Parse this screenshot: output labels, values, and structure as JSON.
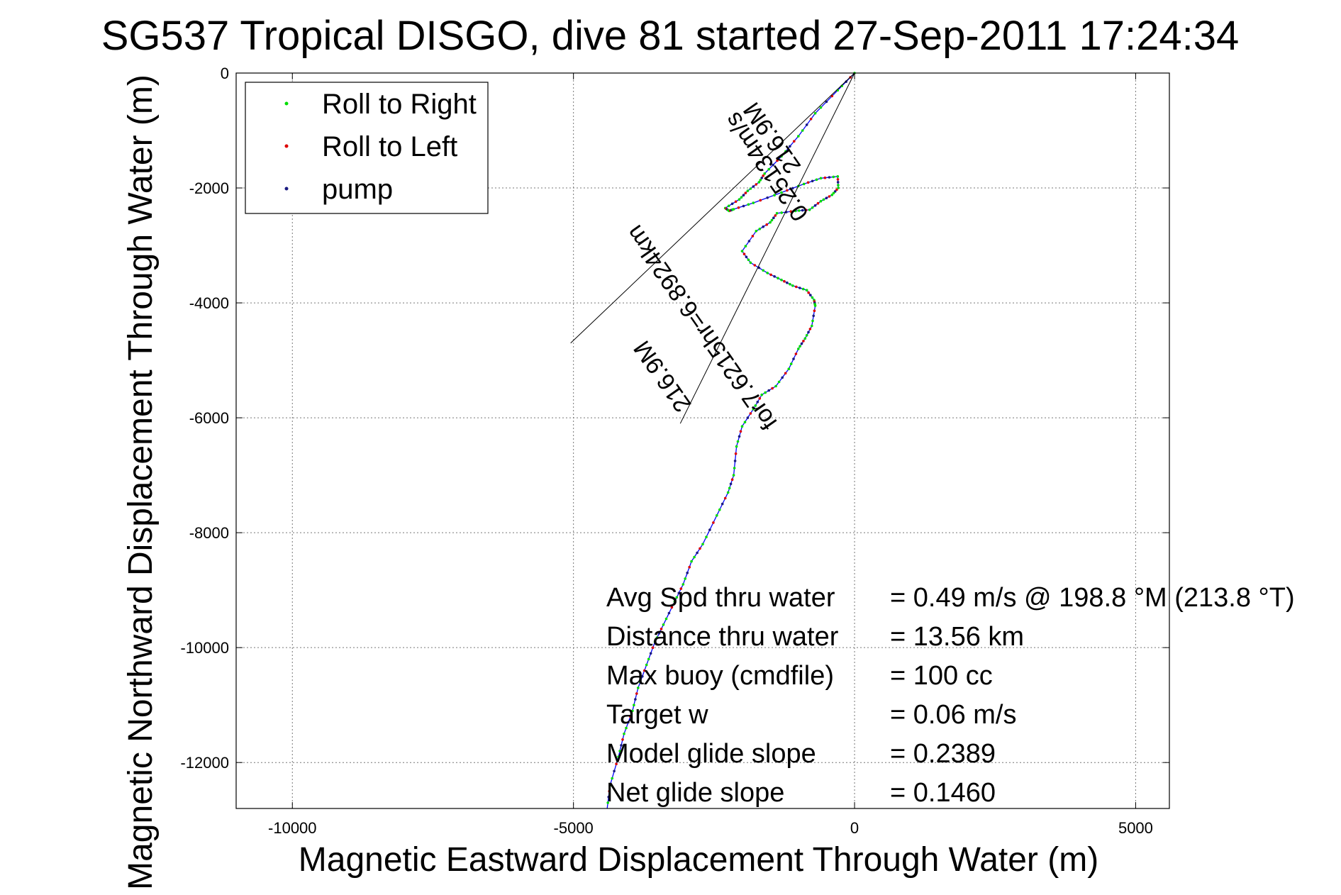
{
  "chart_data": {
    "type": "line",
    "title": "SG537 Tropical DISGO, dive 81 started 27-Sep-2011 17:24:34",
    "xlabel": "Magnetic Eastward Displacement Through Water (m)",
    "ylabel": "Magnetic Northward Displacement Through Water (m)",
    "xlim": [
      -11000,
      5600
    ],
    "ylim": [
      -12800,
      0
    ],
    "xticks": [
      -10000,
      -5000,
      0,
      5000
    ],
    "xtick_labels": [
      "-10000",
      "-5000",
      "0",
      "5000"
    ],
    "yticks": [
      0,
      -2000,
      -4000,
      -6000,
      -8000,
      -10000,
      -12000
    ],
    "ytick_labels": [
      "0",
      "-2000",
      "-4000",
      "-6000",
      "-8000",
      "-10000",
      "-12000"
    ],
    "grid": true,
    "legend_position": "top-left",
    "legend": [
      {
        "label": "Roll to Right",
        "color": "#00dd00"
      },
      {
        "label": "Roll to Left",
        "color": "#dd0000"
      },
      {
        "label": "pump",
        "color": "#1a1a80"
      }
    ],
    "track_color": "#0000ff",
    "track": {
      "x": [
        0,
        -300,
        -700,
        -1000,
        -1300,
        -1600,
        -1700,
        -1900,
        -2050,
        -2300,
        -2230,
        -2150,
        -1800,
        -1300,
        -900,
        -600,
        -300,
        -290,
        -400,
        -600,
        -800,
        -1050,
        -1380,
        -1500,
        -1750,
        -2000,
        -1850,
        -1550,
        -1300,
        -1100,
        -850,
        -720,
        -700,
        -760,
        -880,
        -1000,
        -1170,
        -1400,
        -1650,
        -1800,
        -2000,
        -2100,
        -2150,
        -2250,
        -2450,
        -2700,
        -2900,
        -3050,
        -3200,
        -3400,
        -3550,
        -3700,
        -3850,
        -3950,
        -4100,
        -4200,
        -4350,
        -4400
      ],
      "y": [
        0,
        -300,
        -700,
        -1100,
        -1450,
        -1750,
        -1900,
        -2050,
        -2200,
        -2350,
        -2400,
        -2370,
        -2260,
        -2080,
        -1930,
        -1830,
        -1800,
        -2000,
        -2120,
        -2230,
        -2380,
        -2400,
        -2440,
        -2600,
        -2750,
        -3100,
        -3300,
        -3480,
        -3600,
        -3700,
        -3780,
        -3950,
        -4050,
        -4400,
        -4620,
        -4800,
        -5150,
        -5450,
        -5600,
        -5850,
        -6150,
        -6500,
        -7000,
        -7300,
        -7700,
        -8200,
        -8500,
        -8900,
        -9200,
        -9600,
        -9900,
        -10300,
        -10700,
        -11100,
        -11500,
        -11900,
        -12400,
        -12800
      ]
    },
    "heading_lines": [
      {
        "from": [
          0,
          0
        ],
        "to": [
          -5050,
          -4700
        ]
      },
      {
        "from": [
          0,
          0
        ],
        "to": [
          -3100,
          -6100
        ]
      }
    ],
    "current_labels": [
      {
        "text": "0.25134m/s",
        "x": -1450,
        "y": -1550,
        "rotate": 235
      },
      {
        "text": "216.9M",
        "x": -1350,
        "y": -1050,
        "rotate": 235
      },
      {
        "text": "for7.6215hr=6.8924km",
        "x": -2600,
        "y": -4350,
        "rotate": 235
      },
      {
        "text": "216.9M",
        "x": -3300,
        "y": -5200,
        "rotate": 235
      }
    ],
    "stats": [
      {
        "label": "Avg Spd thru water",
        "value": "=  0.49 m/s @ 198.8 °M (213.8 °T)"
      },
      {
        "label": "Distance thru water",
        "value": "= 13.56 km"
      },
      {
        "label": "Max buoy (cmdfile)",
        "value": "= 100 cc"
      },
      {
        "label": "Target w",
        "value": "= 0.06 m/s"
      },
      {
        "label": "Model glide slope",
        "value": "= 0.2389"
      },
      {
        "label": "Net glide slope",
        "value": "= 0.1460"
      }
    ]
  }
}
